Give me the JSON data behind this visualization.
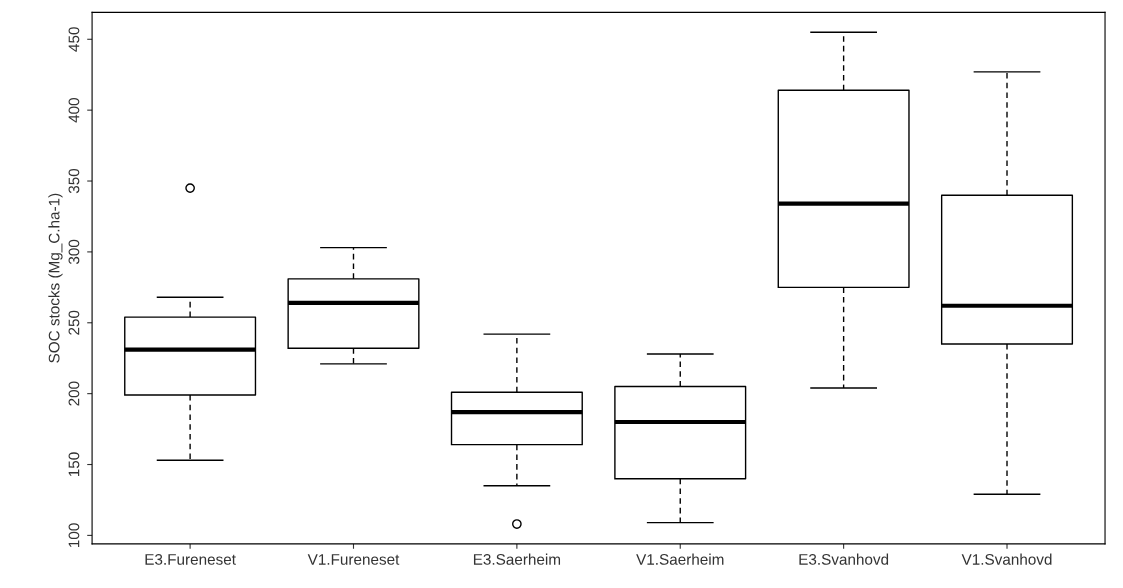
{
  "chart_data": {
    "type": "box",
    "ylabel": "SOC stocks (Mg_C.ha-1)",
    "categories": [
      "E3.Fureneset",
      "V1.Fureneset",
      "E3.Saerheim",
      "V1.Saerheim",
      "E3.Svanhovd",
      "V1.Svanhovd"
    ],
    "boxes": [
      {
        "low": 153,
        "q1": 199,
        "median": 231,
        "q3": 254,
        "high": 268,
        "outliers": [
          345
        ]
      },
      {
        "low": 221,
        "q1": 232,
        "median": 264,
        "q3": 281,
        "high": 303
      },
      {
        "low": 135,
        "q1": 164,
        "median": 187,
        "q3": 201,
        "high": 242,
        "outliers": [
          108
        ]
      },
      {
        "low": 109,
        "q1": 140,
        "median": 180,
        "q3": 205,
        "high": 228
      },
      {
        "low": 204,
        "q1": 275,
        "median": 334,
        "q3": 414,
        "high": 455
      },
      {
        "low": 129,
        "q1": 235,
        "median": 262,
        "q3": 340,
        "high": 427
      }
    ],
    "ylim": [
      94,
      469
    ],
    "yticks": [
      100,
      150,
      200,
      250,
      300,
      350,
      400,
      450
    ],
    "grid": false
  }
}
